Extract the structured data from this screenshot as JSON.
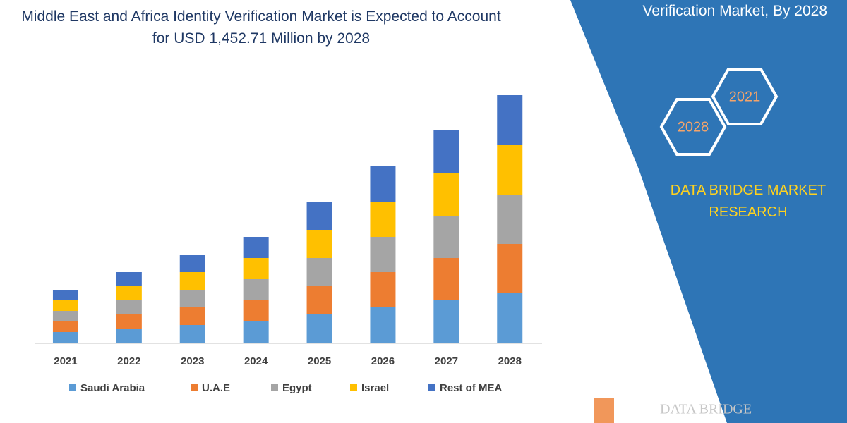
{
  "chart_data": {
    "type": "bar",
    "stacked": true,
    "title": "Middle East and Africa Identity Verification Market is Expected to Account for USD 1,452.71 Million by 2028",
    "categories": [
      "2021",
      "2022",
      "2023",
      "2024",
      "2025",
      "2026",
      "2027",
      "2028"
    ],
    "series": [
      {
        "name": "Saudi Arabia",
        "color": "#5b9bd5",
        "values": [
          15,
          20,
          25,
          30,
          40,
          50,
          60,
          70
        ]
      },
      {
        "name": "U.A.E",
        "color": "#ed7d31",
        "values": [
          15,
          20,
          25,
          30,
          40,
          50,
          60,
          70
        ]
      },
      {
        "name": "Egypt",
        "color": "#a5a5a5",
        "values": [
          15,
          20,
          25,
          30,
          40,
          50,
          60,
          70
        ]
      },
      {
        "name": "Israel",
        "color": "#ffc000",
        "values": [
          15,
          20,
          25,
          30,
          40,
          50,
          60,
          70
        ]
      },
      {
        "name": "Rest of MEA",
        "color": "#4472c4",
        "values": [
          15,
          20,
          25,
          30,
          40,
          51,
          61,
          71
        ]
      }
    ],
    "legend": "bottom"
  },
  "panel": {
    "heading": "Verification Market, By 2028",
    "hexagons": [
      "2021",
      "2028"
    ],
    "brand": "DATA BRIDGE MARKET RESEARCH",
    "logo": "DATA BRIDGE"
  }
}
